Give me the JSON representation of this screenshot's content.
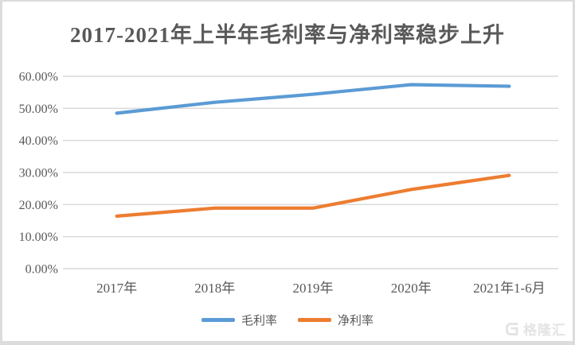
{
  "chart_data": {
    "type": "line",
    "title": "2017-2021年上半年毛利率与净利率稳步上升",
    "categories": [
      "2017年",
      "2018年",
      "2019年",
      "2020年",
      "2021年1-6月"
    ],
    "series": [
      {
        "key": "gross-margin",
        "name": "毛利率",
        "color": "#5B9BD5",
        "values": [
          48.5,
          51.9,
          54.4,
          57.4,
          56.9
        ]
      },
      {
        "key": "net-margin",
        "name": "净利率",
        "color": "#ED7D31",
        "values": [
          16.4,
          18.9,
          18.9,
          24.7,
          29.1
        ]
      }
    ],
    "y_axis": {
      "min": 0,
      "max": 60,
      "tick_step": 10,
      "tick_labels": [
        "0.00%",
        "10.00%",
        "20.00%",
        "30.00%",
        "40.00%",
        "50.00%",
        "60.00%"
      ]
    },
    "grid": "horizontal",
    "legend_position": "bottom",
    "colors": {
      "gridline": "#D9D9D9",
      "axis_text": "#595959",
      "title_text": "#595959"
    }
  },
  "watermark": {
    "brand": "格隆汇",
    "logo_icon": "gelonghui-g-icon"
  }
}
